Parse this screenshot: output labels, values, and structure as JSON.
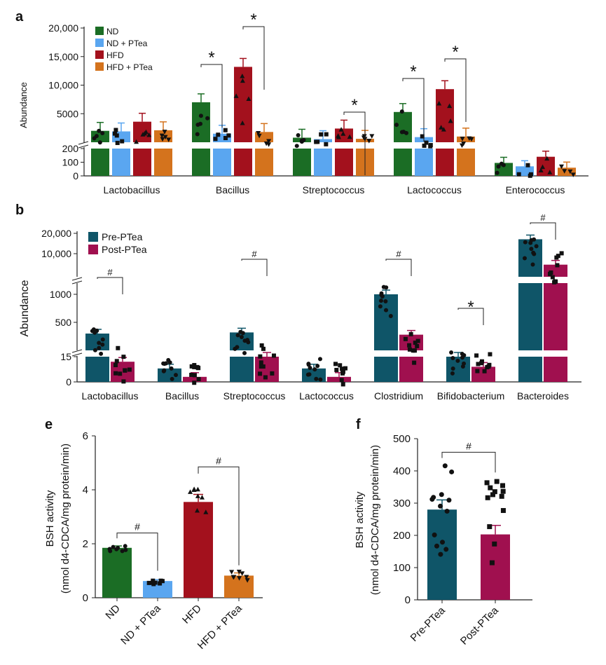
{
  "colors": {
    "ND": "#1b6d25",
    "ND_PTea": "#5aa6f0",
    "HFD": "#a3111d",
    "HFD_PTea": "#d4731d",
    "Pre": "#0f5568",
    "Post": "#a0104f",
    "axis": "#222222"
  },
  "panels": {
    "a": "a",
    "b": "b",
    "e": "e",
    "f": "f"
  },
  "chart_data": [
    {
      "id": "a",
      "type": "bar",
      "ylabel": "Abundance",
      "y_break": true,
      "y_upper_ticks": [
        "5000",
        "10,000",
        "15,000",
        "20,000"
      ],
      "y_lower_ticks": [
        "0",
        "100",
        "200"
      ],
      "categories": [
        "Lactobacillus",
        "Bacillus",
        "Streptococcus",
        "Lactococcus",
        "Enterococcus"
      ],
      "series": [
        {
          "name": "ND",
          "values": [
            2000,
            7000,
            800,
            5300,
            95
          ]
        },
        {
          "name": "ND + PTea",
          "values": [
            1900,
            1500,
            550,
            900,
            70
          ]
        },
        {
          "name": "HFD",
          "values": [
            3600,
            13200,
            2400,
            9300,
            140
          ]
        },
        {
          "name": "HFD + PTea",
          "values": [
            2100,
            1800,
            600,
            1000,
            60
          ]
        }
      ],
      "significance": [
        {
          "category": "Bacillus",
          "pair": [
            "ND",
            "ND + PTea"
          ],
          "mark": "*"
        },
        {
          "category": "Bacillus",
          "pair": [
            "HFD",
            "HFD + PTea"
          ],
          "mark": "*"
        },
        {
          "category": "Streptococcus",
          "pair": [
            "HFD",
            "HFD + PTea"
          ],
          "mark": "*"
        },
        {
          "category": "Lactococcus",
          "pair": [
            "ND",
            "ND + PTea"
          ],
          "mark": "*"
        },
        {
          "category": "Lactococcus",
          "pair": [
            "HFD",
            "HFD + PTea"
          ],
          "mark": "*"
        }
      ]
    },
    {
      "id": "b",
      "type": "bar",
      "ylabel": "Abundance",
      "y_break": true,
      "y_ticks": [
        "0",
        "15",
        "500",
        "1000",
        "10,000",
        "20,000"
      ],
      "categories": [
        "Lactobacillus",
        "Bacillus",
        "Streptococcus",
        "Lactococcus",
        "Clostridium",
        "Bifidobacterium",
        "Bacteroides"
      ],
      "series": [
        {
          "name": "Pre-PTea",
          "values": [
            300,
            8,
            320,
            8,
            1000,
            15,
            17000
          ]
        },
        {
          "name": "Post-PTea",
          "values": [
            12,
            3,
            15,
            3,
            280,
            9,
            5500
          ]
        }
      ],
      "significance": [
        {
          "category": "Lactobacillus",
          "mark": "#"
        },
        {
          "category": "Streptococcus",
          "mark": "#"
        },
        {
          "category": "Clostridium",
          "mark": "#"
        },
        {
          "category": "Bifidobacterium",
          "mark": "*"
        },
        {
          "category": "Bacteroides",
          "mark": "#"
        }
      ]
    },
    {
      "id": "e",
      "type": "bar",
      "ylabel": "BSH activity",
      "ylabel2": "(nmol d4-CDCA/mg protein/min)",
      "ylim": [
        0,
        6
      ],
      "y_ticks": [
        "0",
        "2",
        "4",
        "6"
      ],
      "categories": [
        "ND",
        "ND + PTea",
        "HFD",
        "HFD + PTea"
      ],
      "values": [
        1.85,
        0.62,
        3.55,
        0.82
      ],
      "errors": [
        0.07,
        0.05,
        0.28,
        0.1
      ],
      "significance": [
        {
          "pair": [
            "ND",
            "ND + PTea"
          ],
          "mark": "#"
        },
        {
          "pair": [
            "HFD",
            "HFD + PTea"
          ],
          "mark": "#"
        }
      ]
    },
    {
      "id": "f",
      "type": "bar",
      "ylabel": "BSH activity",
      "ylabel2": "(nmol d4-CDCA/mg protein/min)",
      "ylim": [
        0,
        500
      ],
      "y_ticks": [
        "0",
        "100",
        "200",
        "300",
        "400",
        "500"
      ],
      "categories": [
        "Pre-PTea",
        "Post-PTea"
      ],
      "values": [
        280,
        203
      ],
      "errors": [
        30,
        28
      ],
      "significance": [
        {
          "pair": [
            "Pre-PTea",
            "Post-PTea"
          ],
          "mark": "#"
        }
      ]
    }
  ]
}
